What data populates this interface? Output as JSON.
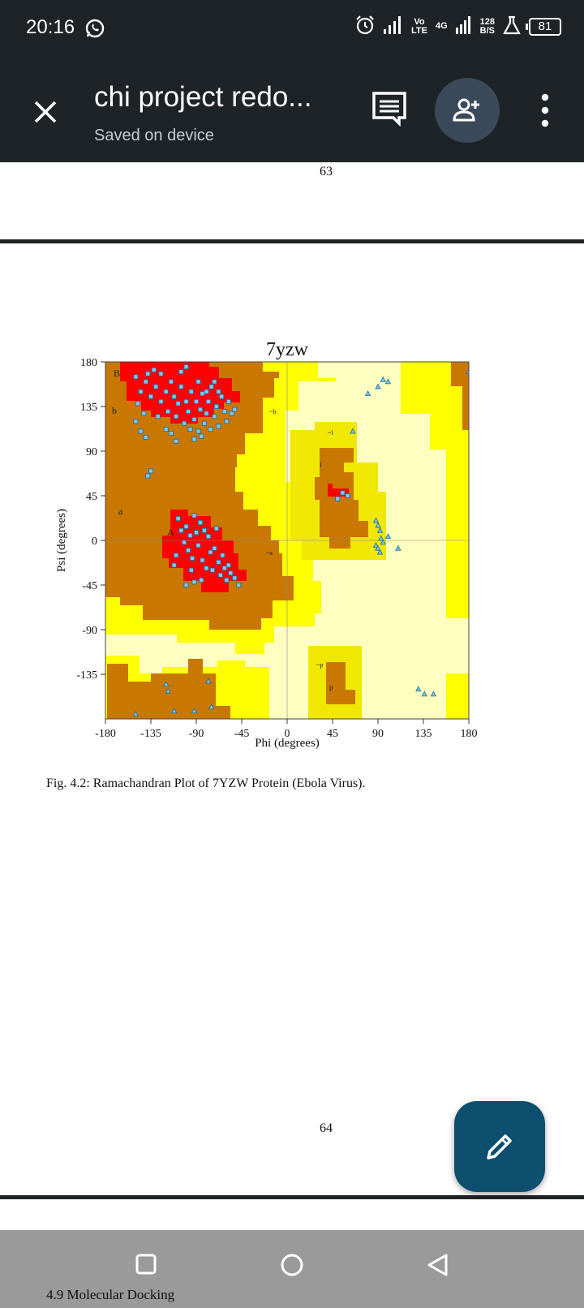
{
  "status_bar": {
    "time": "20:16",
    "network_volte_top": "Vo",
    "network_volte_bottom": "LTE",
    "network_4g": "4G",
    "speed_value": "128",
    "speed_unit": "B/S",
    "battery": "81"
  },
  "app_bar": {
    "title": "chi project redo...",
    "subtitle": "Saved on device"
  },
  "page": {
    "page_number_top": "63",
    "page_number_bottom": "64",
    "caption": "Fig. 4.2: Ramachandran Plot of 7YZW Protein (Ebola Virus).",
    "next_section": "4.9   Molecular Docking"
  },
  "colors": {
    "chrome": "#1e2328",
    "fab": "#0e4e6e",
    "core_region": "#ff0000",
    "allowed_region": "#c87800",
    "generous_region": "#f0e800",
    "generous_outer": "#ffff00",
    "disallowed_region": "#ffffc0"
  },
  "chart_data": {
    "type": "scatter",
    "title": "7yzw",
    "xlabel": "Phi (degrees)",
    "ylabel": "Psi (degrees)",
    "xlim": [
      -180,
      180
    ],
    "ylim": [
      -180,
      180
    ],
    "x_ticks": [
      "-180",
      "-135",
      "-90",
      "-45",
      "0",
      "45",
      "90",
      "135",
      "180"
    ],
    "y_ticks": [
      "180",
      "135",
      "90",
      "45",
      "0",
      "-45",
      "-90",
      "-135"
    ],
    "region_labels": [
      "A",
      "B",
      "a",
      "b",
      "~a",
      "~b",
      "l",
      "~l",
      "p",
      "~p"
    ],
    "series": [
      {
        "marker": "square",
        "points": [
          [
            -150,
            165
          ],
          [
            -145,
            150
          ],
          [
            -140,
            160
          ],
          [
            -135,
            145
          ],
          [
            -130,
            155
          ],
          [
            -125,
            140
          ],
          [
            -120,
            150
          ],
          [
            -118,
            130
          ],
          [
            -115,
            160
          ],
          [
            -112,
            145
          ],
          [
            -110,
            125
          ],
          [
            -108,
            138
          ],
          [
            -105,
            155
          ],
          [
            -102,
            118
          ],
          [
            -100,
            140
          ],
          [
            -98,
            130
          ],
          [
            -95,
            150
          ],
          [
            -92,
            122
          ],
          [
            -90,
            140
          ],
          [
            -88,
            110
          ],
          [
            -86,
            132
          ],
          [
            -84,
            148
          ],
          [
            -82,
            118
          ],
          [
            -80,
            128
          ],
          [
            -78,
            140
          ],
          [
            -75,
            155
          ],
          [
            -72,
            125
          ],
          [
            -70,
            135
          ],
          [
            -68,
            115
          ],
          [
            -65,
            145
          ],
          [
            -62,
            130
          ],
          [
            -60,
            120
          ],
          [
            -58,
            140
          ],
          [
            -55,
            128
          ],
          [
            -52,
            132
          ],
          [
            -148,
            138
          ],
          [
            -142,
            128
          ],
          [
            -138,
            168
          ],
          [
            -132,
            172
          ],
          [
            -128,
            125
          ],
          [
            -125,
            168
          ],
          [
            -120,
            112
          ],
          [
            -115,
            108
          ],
          [
            -110,
            100
          ],
          [
            -105,
            170
          ],
          [
            -100,
            175
          ],
          [
            -96,
            112
          ],
          [
            -92,
            102
          ],
          [
            -88,
            160
          ],
          [
            -85,
            105
          ],
          [
            -80,
            150
          ],
          [
            -76,
            112
          ],
          [
            -72,
            160
          ],
          [
            -68,
            150
          ],
          [
            -150,
            120
          ],
          [
            -145,
            110
          ],
          [
            -140,
            104
          ],
          [
            -135,
            70
          ],
          [
            -138,
            65
          ],
          [
            -108,
            22
          ],
          [
            -105,
            10
          ],
          [
            -102,
            -2
          ],
          [
            -100,
            14
          ],
          [
            -98,
            -10
          ],
          [
            -96,
            5
          ],
          [
            -94,
            -18
          ],
          [
            -92,
            25
          ],
          [
            -90,
            8
          ],
          [
            -88,
            -5
          ],
          [
            -86,
            18
          ],
          [
            -84,
            -20
          ],
          [
            -82,
            10
          ],
          [
            -80,
            -28
          ],
          [
            -78,
            4
          ],
          [
            -76,
            -12
          ],
          [
            -74,
            -30
          ],
          [
            -72,
            -8
          ],
          [
            -70,
            12
          ],
          [
            -68,
            -22
          ],
          [
            -66,
            -35
          ],
          [
            -64,
            -15
          ],
          [
            -62,
            -28
          ],
          [
            -60,
            -40
          ],
          [
            -58,
            -25
          ],
          [
            -56,
            -33
          ],
          [
            -52,
            -38
          ],
          [
            -48,
            -45
          ],
          [
            -95,
            -30
          ],
          [
            -92,
            -42
          ],
          [
            -110,
            -15
          ],
          [
            -112,
            -25
          ],
          [
            -100,
            -45
          ],
          [
            -85,
            -40
          ],
          [
            55,
            48
          ],
          [
            60,
            45
          ],
          [
            50,
            42
          ]
        ]
      },
      {
        "marker": "triangle",
        "points": [
          [
            -150,
            -175
          ],
          [
            -118,
            -152
          ],
          [
            -112,
            -172
          ],
          [
            -92,
            -172
          ],
          [
            -78,
            -142
          ],
          [
            -75,
            -168
          ],
          [
            -120,
            -145
          ],
          [
            65,
            110
          ],
          [
            92,
            10
          ],
          [
            88,
            -5
          ],
          [
            90,
            -8
          ],
          [
            93,
            2
          ],
          [
            95,
            -2
          ],
          [
            100,
            4
          ],
          [
            110,
            -8
          ],
          [
            90,
            15
          ],
          [
            88,
            20
          ],
          [
            92,
            -12
          ],
          [
            80,
            148
          ],
          [
            90,
            155
          ],
          [
            95,
            162
          ],
          [
            100,
            160
          ],
          [
            130,
            -150
          ],
          [
            136,
            -155
          ],
          [
            145,
            -155
          ],
          [
            180,
            170
          ]
        ]
      }
    ]
  }
}
